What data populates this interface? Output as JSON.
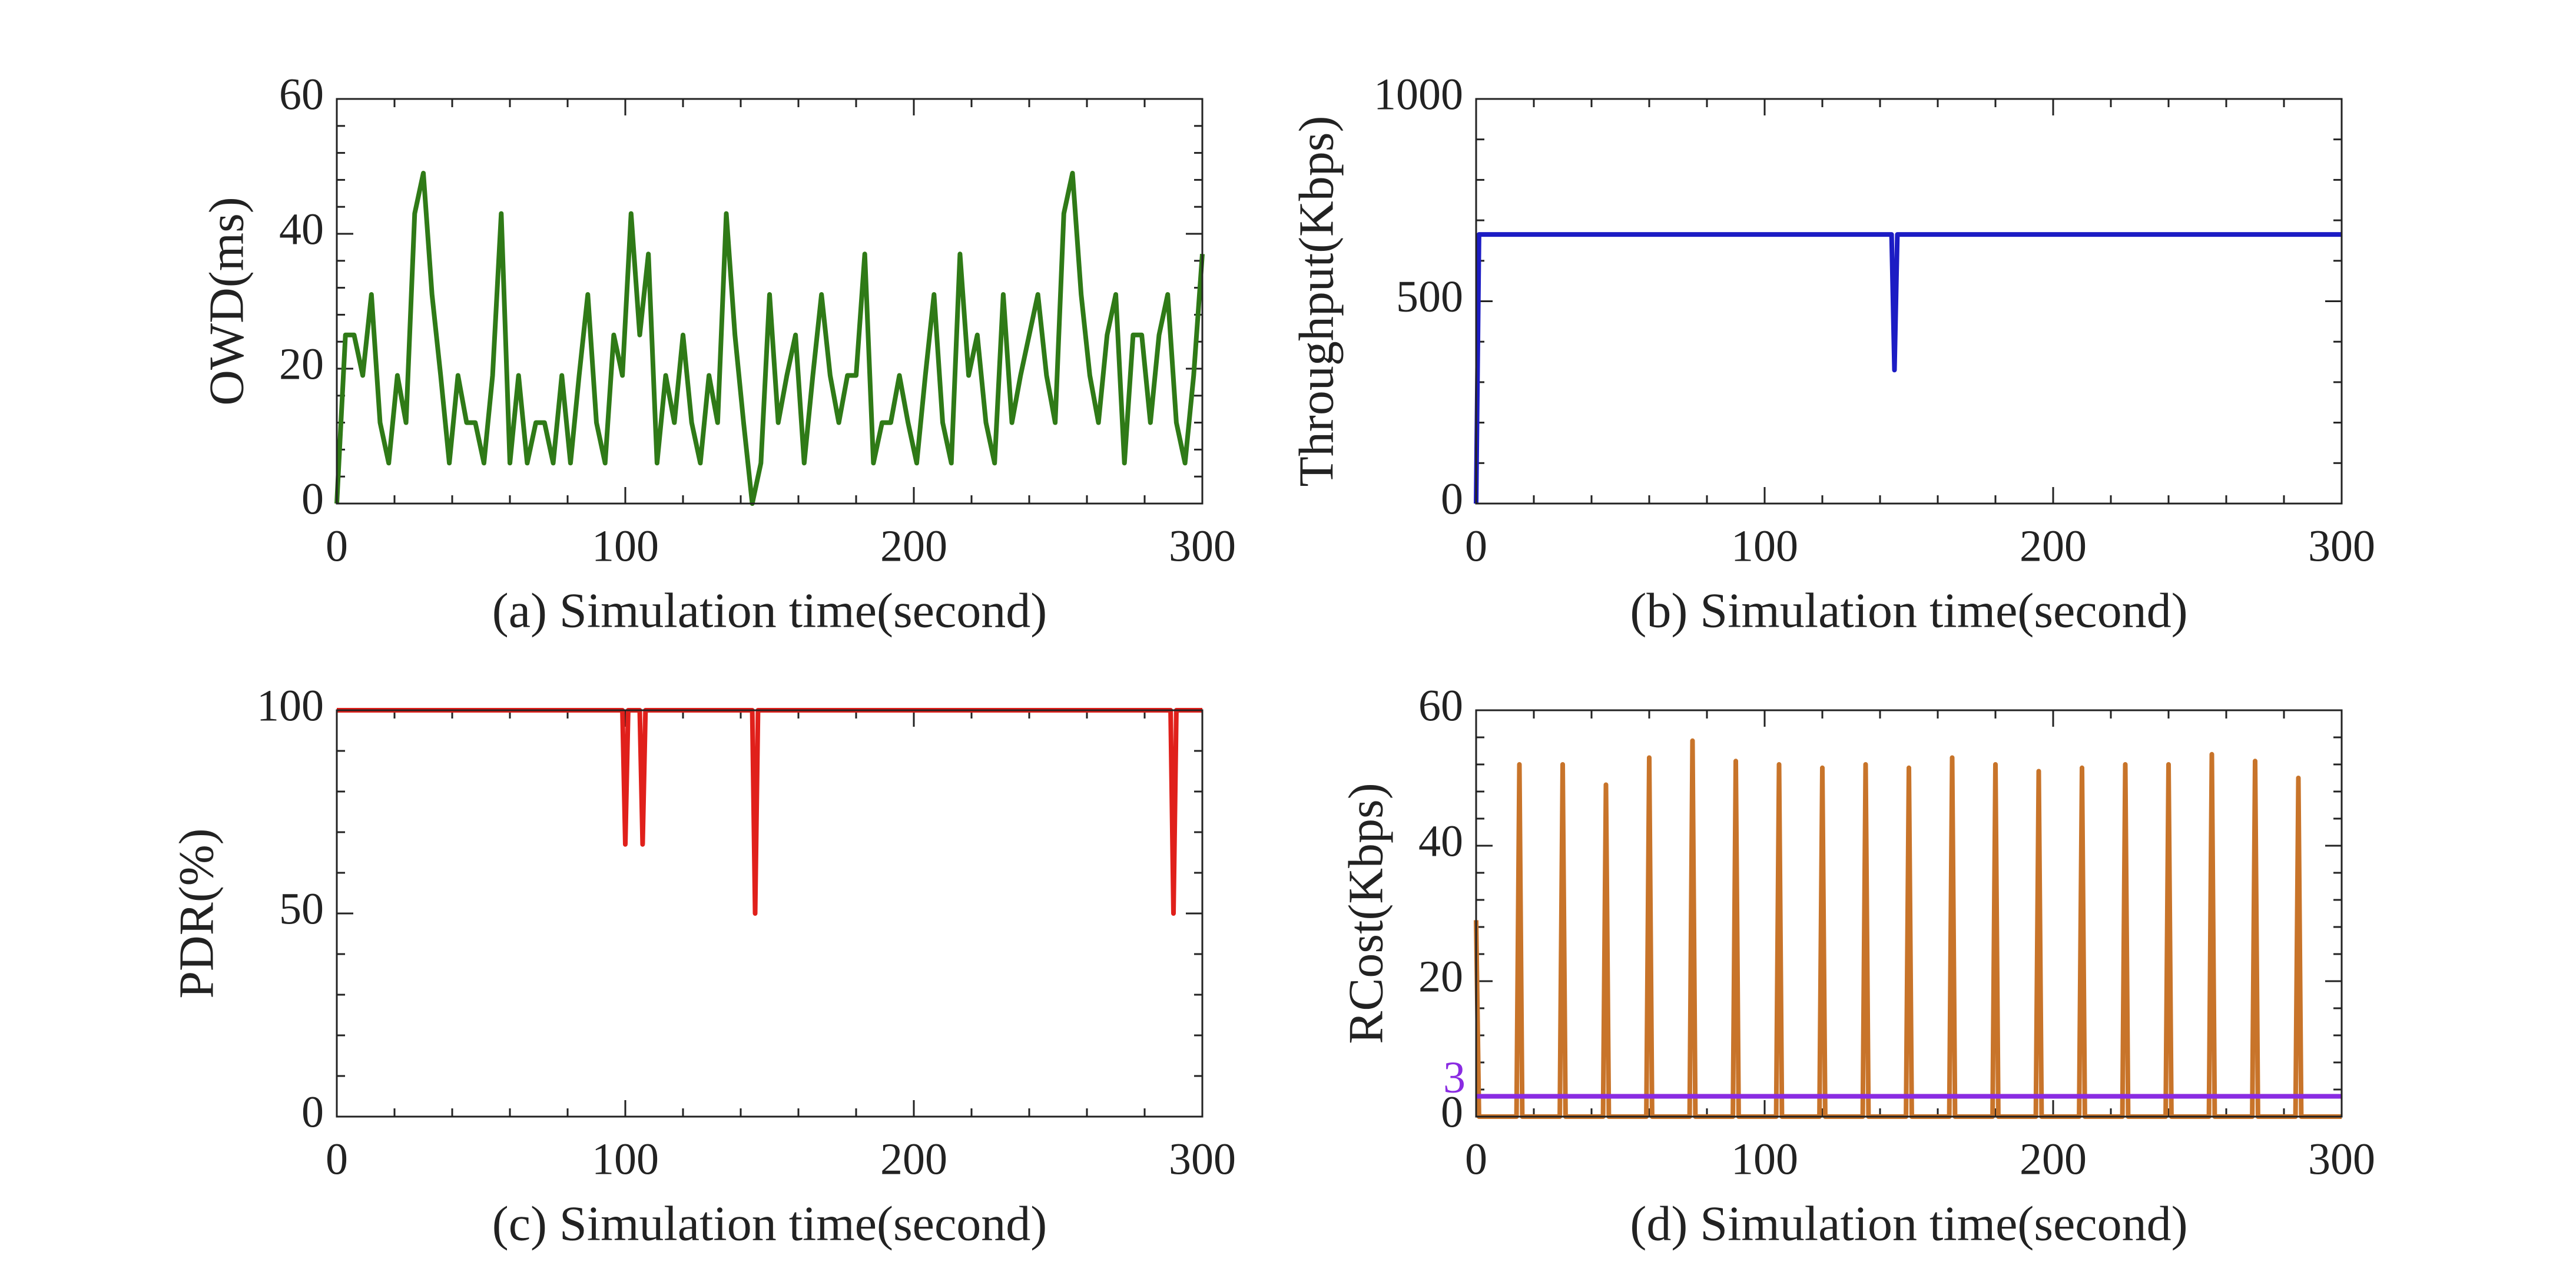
{
  "chart_data": [
    {
      "type": "line",
      "xlabel": "(a) Simulation time(second)",
      "ylabel": "OWD(ms)",
      "xlim": [
        0,
        300
      ],
      "ylim": [
        0,
        60
      ],
      "xticks": [
        0,
        100,
        200,
        300
      ],
      "yticks": [
        0,
        20,
        40,
        60
      ],
      "series": [
        {
          "color": "#2f7a17",
          "x": [
            0,
            3,
            6,
            9,
            12,
            15,
            18,
            21,
            24,
            27,
            30,
            33,
            36,
            39,
            42,
            45,
            48,
            51,
            54,
            57,
            60,
            63,
            66,
            69,
            72,
            75,
            78,
            81,
            84,
            87,
            90,
            93,
            96,
            99,
            102,
            105,
            108,
            111,
            114,
            117,
            120,
            123,
            126,
            129,
            132,
            135,
            138,
            141,
            144,
            147,
            150,
            153,
            156,
            159,
            162,
            165,
            168,
            171,
            174,
            177,
            180,
            183,
            186,
            189,
            192,
            195,
            198,
            201,
            204,
            207,
            210,
            213,
            216,
            219,
            222,
            225,
            228,
            231,
            234,
            237,
            240,
            243,
            246,
            249,
            252,
            255,
            258,
            261,
            264,
            267,
            270,
            273,
            276,
            279,
            282,
            285,
            288,
            291,
            294,
            297,
            300
          ],
          "values": [
            0,
            25,
            25,
            19,
            31,
            12,
            6,
            19,
            12,
            43,
            49,
            31,
            19,
            6,
            19,
            12,
            12,
            6,
            19,
            43,
            6,
            19,
            6,
            12,
            12,
            6,
            19,
            6,
            19,
            31,
            12,
            6,
            25,
            19,
            43,
            25,
            37,
            6,
            19,
            12,
            25,
            12,
            6,
            19,
            12,
            43,
            25,
            12,
            0,
            6,
            31,
            12,
            19,
            25,
            6,
            19,
            31,
            19,
            12,
            19,
            19,
            37,
            6,
            12,
            12,
            19,
            12,
            6,
            19,
            31,
            12,
            6,
            37,
            19,
            25,
            12,
            6,
            31,
            12,
            19,
            25,
            31,
            19,
            12,
            43,
            49,
            31,
            19,
            12,
            25,
            31,
            6,
            25,
            25,
            12,
            25,
            31,
            12,
            6,
            19,
            37
          ]
        }
      ]
    },
    {
      "type": "line",
      "xlabel": "(b) Simulation time(second)",
      "ylabel": "Throughput(Kbps)",
      "xlim": [
        0,
        300
      ],
      "ylim": [
        0,
        1000
      ],
      "xticks": [
        0,
        100,
        200,
        300
      ],
      "yticks": [
        0,
        500,
        1000
      ],
      "series": [
        {
          "color": "#1c1cc4",
          "x": [
            0,
            1,
            144,
            145,
            146,
            300
          ],
          "values": [
            0,
            665,
            665,
            330,
            665,
            665
          ]
        }
      ]
    },
    {
      "type": "line",
      "xlabel": "(c) Simulation time(second)",
      "ylabel": "PDR(%)",
      "xlim": [
        0,
        300
      ],
      "ylim": [
        0,
        100
      ],
      "xticks": [
        0,
        100,
        200,
        300
      ],
      "yticks": [
        0,
        50,
        100
      ],
      "series": [
        {
          "color": "#e0201b",
          "x": [
            0,
            99,
            100,
            101,
            105,
            106,
            107,
            144,
            145,
            146,
            289,
            290,
            291,
            300
          ],
          "values": [
            100,
            100,
            67,
            100,
            100,
            67,
            100,
            100,
            50,
            100,
            100,
            50,
            100,
            100
          ]
        }
      ]
    },
    {
      "type": "line",
      "xlabel": "(d) Simulation time(second)",
      "ylabel": "RCost(Kbps)",
      "annotation": "3",
      "xlim": [
        0,
        300
      ],
      "ylim": [
        0,
        60
      ],
      "xticks": [
        0,
        100,
        200,
        300
      ],
      "yticks": [
        0,
        20,
        40,
        60
      ],
      "series": [
        {
          "color": "#c8742a",
          "x": [
            0,
            1,
            14,
            15,
            16,
            29,
            30,
            31,
            44,
            45,
            46,
            59,
            60,
            61,
            74,
            75,
            76,
            89,
            90,
            91,
            104,
            105,
            106,
            119,
            120,
            121,
            134,
            135,
            136,
            149,
            150,
            151,
            164,
            165,
            166,
            179,
            180,
            181,
            194,
            195,
            196,
            209,
            210,
            211,
            224,
            225,
            226,
            239,
            240,
            241,
            254,
            255,
            256,
            269,
            270,
            271,
            284,
            285,
            286,
            300
          ],
          "values": [
            29,
            0,
            0,
            52,
            0,
            0,
            52,
            0,
            0,
            49,
            0,
            0,
            53,
            0,
            0,
            55.5,
            0,
            0,
            52.5,
            0,
            0,
            52,
            0,
            0,
            51.5,
            0,
            0,
            52,
            0,
            0,
            51.5,
            0,
            0,
            53,
            0,
            0,
            52,
            0,
            0,
            51,
            0,
            0,
            51.5,
            0,
            0,
            52,
            0,
            0,
            52,
            0,
            0,
            53.5,
            0,
            0,
            52.5,
            0,
            0,
            50,
            0,
            0
          ]
        },
        {
          "color": "#8a2be2",
          "x": [
            0,
            300
          ],
          "values": [
            3,
            3
          ]
        }
      ]
    }
  ]
}
